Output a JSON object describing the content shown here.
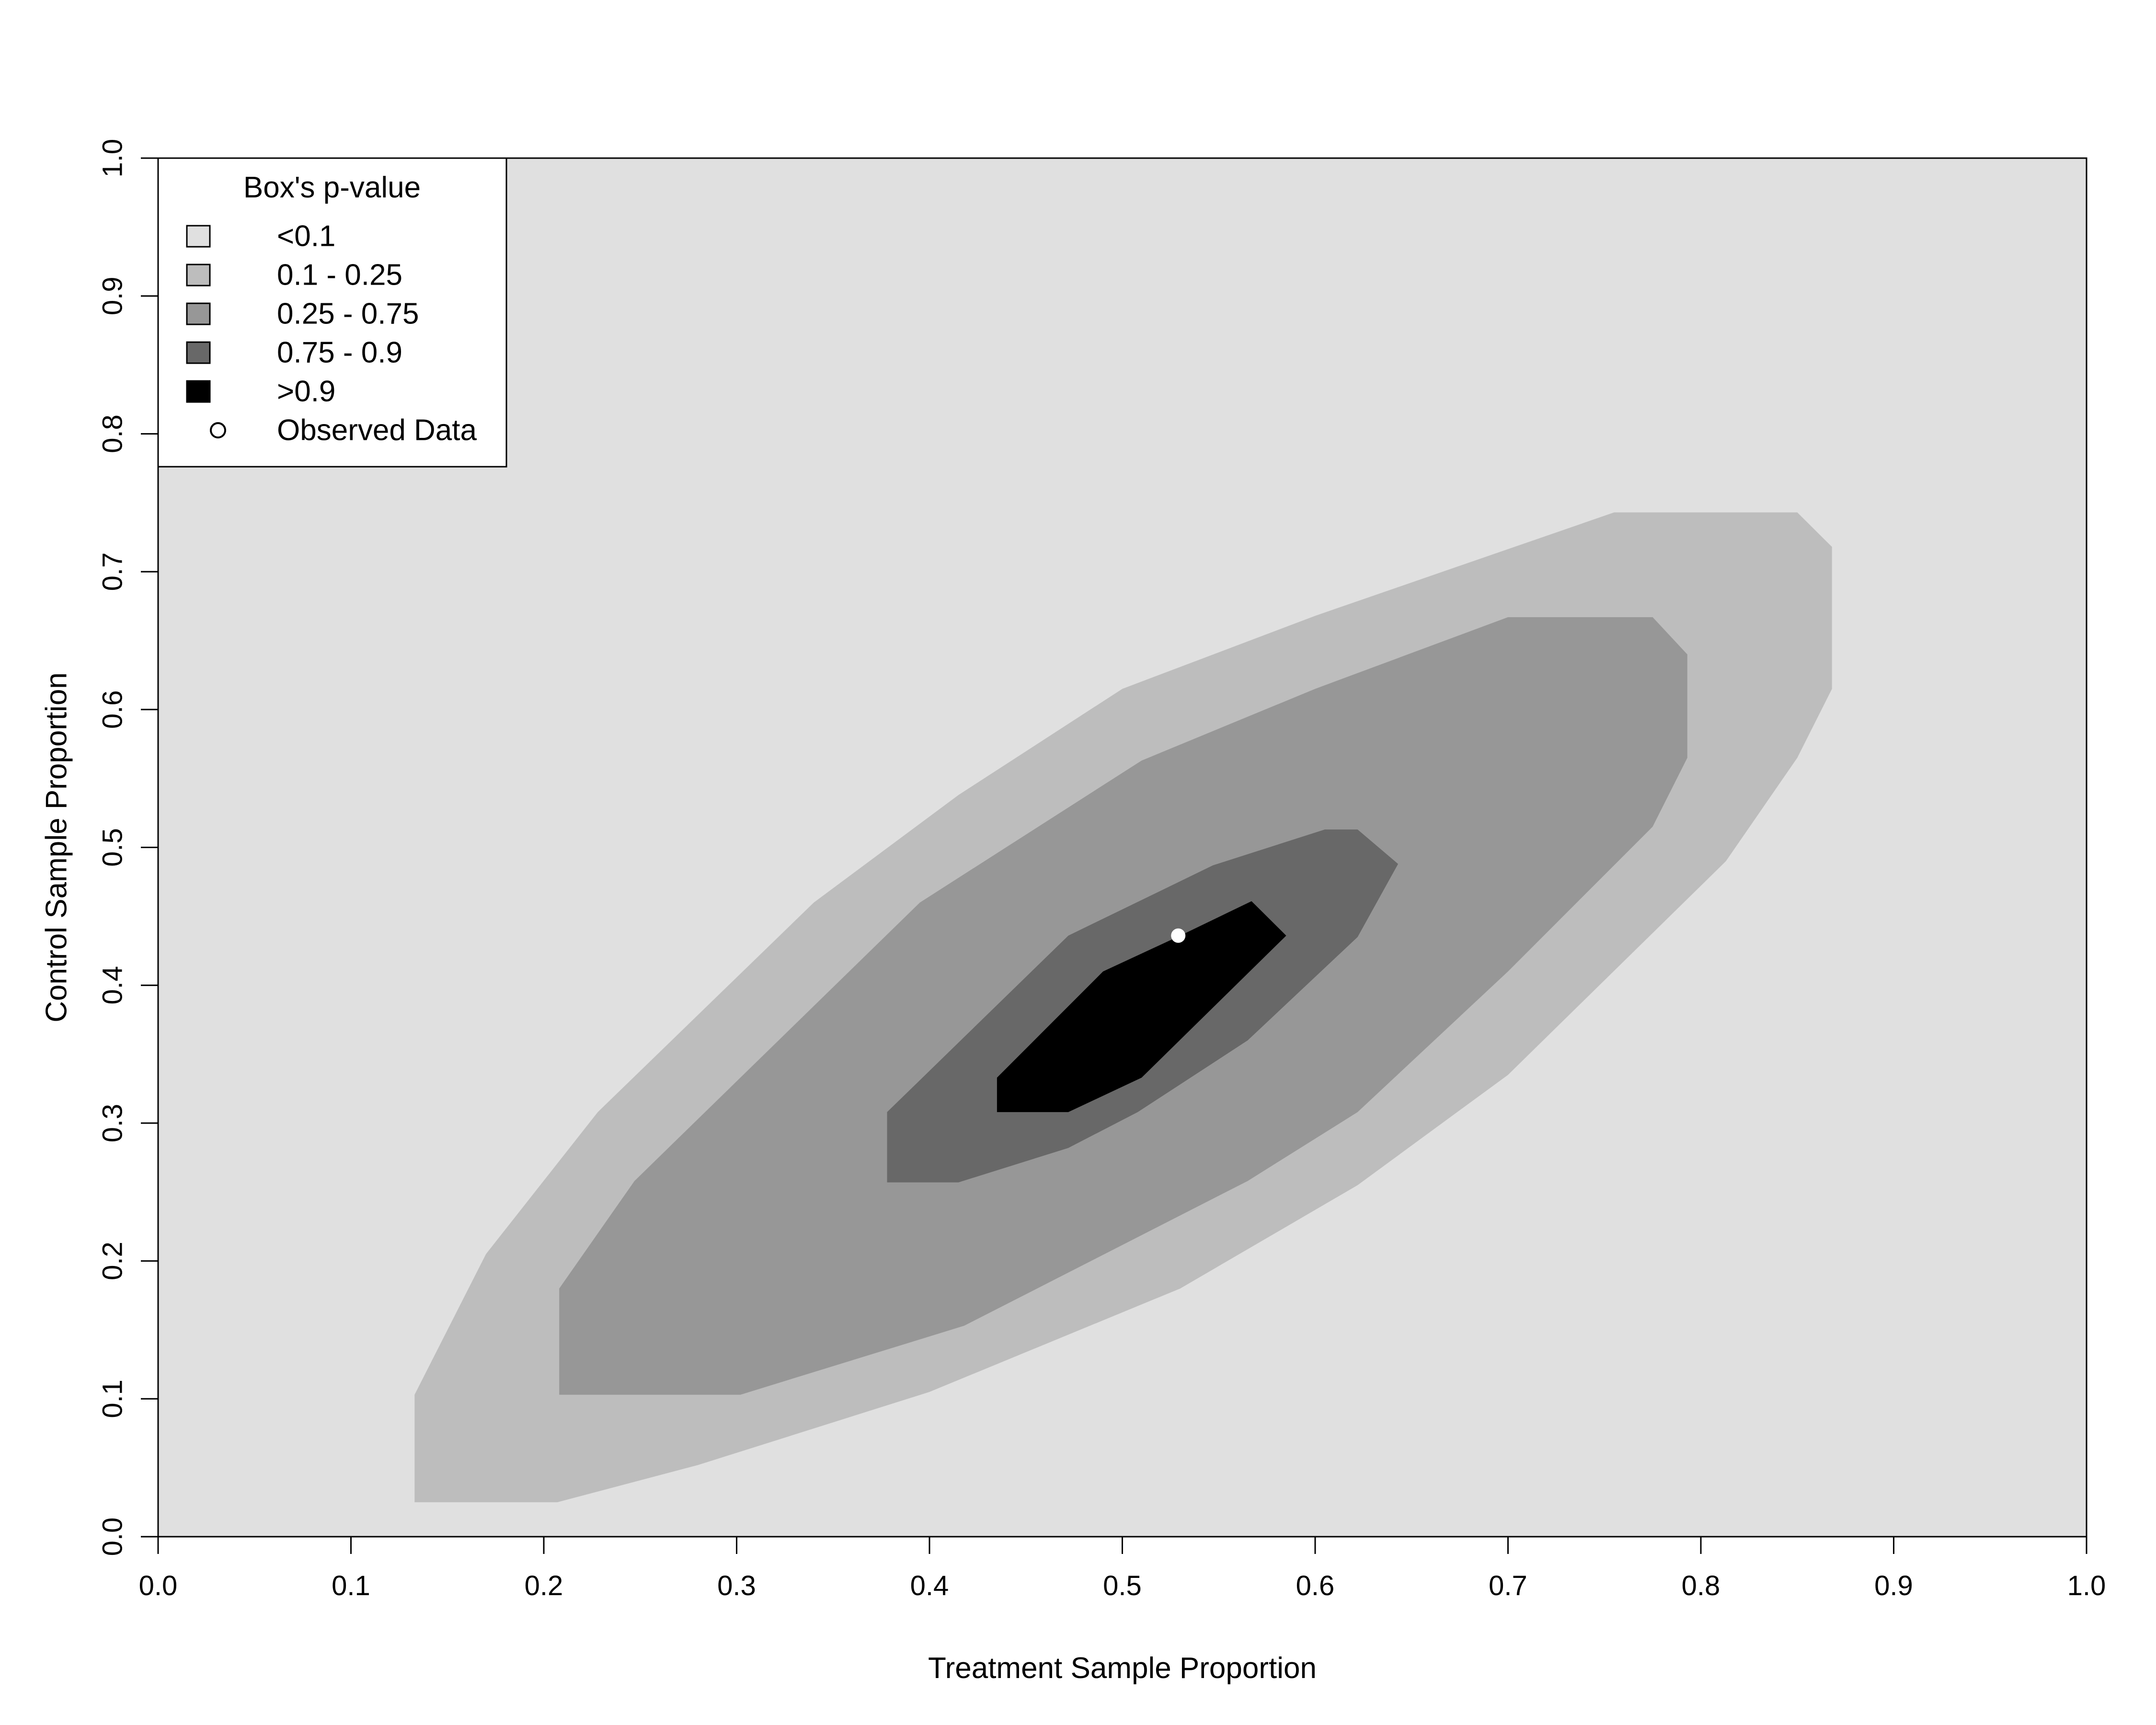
{
  "chart_data": {
    "type": "contour",
    "xlabel": "Treatment Sample Proportion",
    "ylabel": "Control Sample Proportion",
    "xlim": [
      0,
      1
    ],
    "ylim": [
      0,
      1
    ],
    "x_ticks": [
      0.0,
      0.1,
      0.2,
      0.3,
      0.4,
      0.5,
      0.6,
      0.7,
      0.8,
      0.9,
      1.0
    ],
    "y_ticks": [
      0.0,
      0.1,
      0.2,
      0.3,
      0.4,
      0.5,
      0.6,
      0.7,
      0.8,
      0.9,
      1.0
    ],
    "x_tick_labels": [
      "0.0",
      "0.1",
      "0.2",
      "0.3",
      "0.4",
      "0.5",
      "0.6",
      "0.7",
      "0.8",
      "0.9",
      "1.0"
    ],
    "y_tick_labels": [
      "0.0",
      "0.1",
      "0.2",
      "0.3",
      "0.4",
      "0.5",
      "0.6",
      "0.7",
      "0.8",
      "0.9",
      "1.0"
    ],
    "grid": false,
    "legend_position": "top-left",
    "legend": {
      "title": "Box's p-value",
      "entries": [
        {
          "label": "<0.1",
          "color": "#e0e0e0",
          "marker": "square"
        },
        {
          "label": "0.1 - 0.25",
          "color": "#bdbdbd",
          "marker": "square"
        },
        {
          "label": "0.25 - 0.75",
          "color": "#979797",
          "marker": "square"
        },
        {
          "label": "0.75 - 0.9",
          "color": "#686868",
          "marker": "square"
        },
        {
          "label": ">0.9",
          "color": "#000000",
          "marker": "square"
        },
        {
          "label": "Observed Data",
          "color": "#ffffff",
          "marker": "circle"
        }
      ]
    },
    "background_color": "#e0e0e0",
    "regions": [
      {
        "level": "0.1 - 0.25",
        "color": "#bdbdbd",
        "polygon": [
          [
            0.133,
            0.025
          ],
          [
            0.207,
            0.025
          ],
          [
            0.28,
            0.052
          ],
          [
            0.4,
            0.105
          ],
          [
            0.53,
            0.18
          ],
          [
            0.622,
            0.255
          ],
          [
            0.7,
            0.335
          ],
          [
            0.813,
            0.49
          ],
          [
            0.85,
            0.565
          ],
          [
            0.868,
            0.615
          ],
          [
            0.868,
            0.718
          ],
          [
            0.85,
            0.743
          ],
          [
            0.755,
            0.743
          ],
          [
            0.6,
            0.668
          ],
          [
            0.5,
            0.615
          ],
          [
            0.415,
            0.538
          ],
          [
            0.34,
            0.46
          ],
          [
            0.228,
            0.308
          ],
          [
            0.17,
            0.205
          ],
          [
            0.133,
            0.103
          ]
        ]
      },
      {
        "level": "0.25 - 0.75",
        "color": "#979797",
        "polygon": [
          [
            0.208,
            0.103
          ],
          [
            0.302,
            0.103
          ],
          [
            0.418,
            0.153
          ],
          [
            0.565,
            0.258
          ],
          [
            0.622,
            0.308
          ],
          [
            0.7,
            0.41
          ],
          [
            0.775,
            0.515
          ],
          [
            0.793,
            0.565
          ],
          [
            0.793,
            0.64
          ],
          [
            0.775,
            0.667
          ],
          [
            0.7,
            0.667
          ],
          [
            0.6,
            0.615
          ],
          [
            0.51,
            0.563
          ],
          [
            0.395,
            0.46
          ],
          [
            0.247,
            0.258
          ],
          [
            0.208,
            0.18
          ]
        ]
      },
      {
        "level": "0.75 - 0.9",
        "color": "#686868",
        "polygon": [
          [
            0.378,
            0.257
          ],
          [
            0.415,
            0.257
          ],
          [
            0.472,
            0.282
          ],
          [
            0.508,
            0.308
          ],
          [
            0.565,
            0.36
          ],
          [
            0.622,
            0.435
          ],
          [
            0.643,
            0.488
          ],
          [
            0.622,
            0.513
          ],
          [
            0.605,
            0.513
          ],
          [
            0.547,
            0.487
          ],
          [
            0.472,
            0.436
          ],
          [
            0.378,
            0.308
          ]
        ]
      },
      {
        "level": ">0.9",
        "color": "#000000",
        "polygon": [
          [
            0.435,
            0.308
          ],
          [
            0.472,
            0.308
          ],
          [
            0.51,
            0.333
          ],
          [
            0.585,
            0.436
          ],
          [
            0.567,
            0.461
          ],
          [
            0.53,
            0.436
          ],
          [
            0.49,
            0.41
          ],
          [
            0.435,
            0.333
          ]
        ]
      }
    ],
    "observed_data": {
      "x": 0.529,
      "y": 0.436
    }
  }
}
